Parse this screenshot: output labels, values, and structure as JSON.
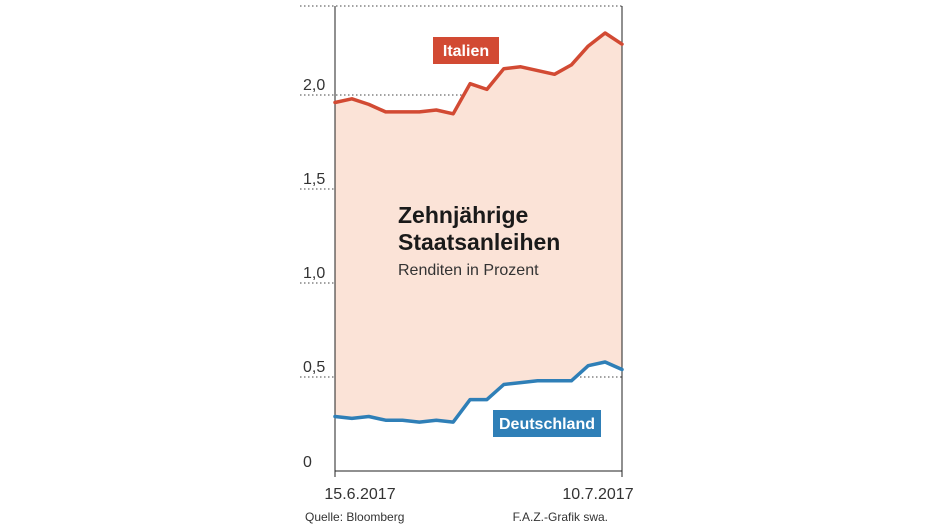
{
  "chart_data": {
    "type": "line",
    "title": "Zehnjährige Staatsanleihen",
    "title_lines": [
      "Zehnjährige",
      "Staatsanleihen"
    ],
    "subtitle": "Renditen in Prozent",
    "y_ticks": [
      "0",
      "0,5",
      "1,0",
      "1,5",
      "2,0"
    ],
    "y_tick_values": [
      0,
      0.5,
      1.0,
      1.5,
      2.0
    ],
    "x_tick_labels": [
      "15.6.2017",
      "10.7.2017"
    ],
    "ylim": [
      0,
      2.42
    ],
    "grid": true,
    "fill_between_series": true,
    "fill_color": "#fbe3d7",
    "series": [
      {
        "name": "Italien",
        "color": "#d24a33",
        "values": [
          1.96,
          1.98,
          1.95,
          1.91,
          1.91,
          1.91,
          1.92,
          1.9,
          2.06,
          2.03,
          2.14,
          2.15,
          2.13,
          2.11,
          2.16,
          2.26,
          2.33,
          2.27
        ]
      },
      {
        "name": "Deutschland",
        "color": "#2f7fb7",
        "values": [
          0.29,
          0.28,
          0.29,
          0.27,
          0.27,
          0.26,
          0.27,
          0.26,
          0.38,
          0.38,
          0.46,
          0.47,
          0.48,
          0.48,
          0.48,
          0.56,
          0.58,
          0.54
        ]
      }
    ]
  },
  "footer": {
    "source": "Quelle: Bloomberg",
    "credit": "F.A.Z.-Grafik swa."
  }
}
